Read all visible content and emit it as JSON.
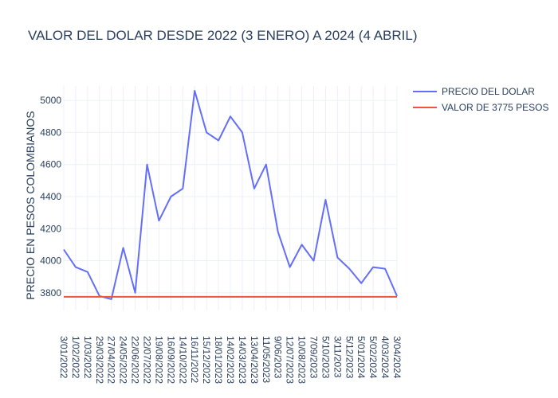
{
  "chart_data": {
    "type": "line",
    "title": "VALOR DEL DOLAR DESDE 2022 (3 ENERO) A 2024 (4 ABRIL)",
    "ylabel": "PRECIO EN PESOS COLOMBIANOS",
    "xlabel": "",
    "ylim": [
      3690,
      5090
    ],
    "yticks": [
      3800,
      4000,
      4200,
      4400,
      4600,
      4800,
      5000
    ],
    "x_tick_labels": [
      "3/01/2022",
      "1/02/2022",
      "1/03/2022",
      "29/03/2022",
      "27/04/2022",
      "24/05/2022",
      "22/06/2022",
      "22/07/2022",
      "19/08/2022",
      "16/09/2022",
      "14/10/2022",
      "16/11/2022",
      "15/12/2022",
      "18/01/2023",
      "14/02/2023",
      "14/03/2023",
      "13/04/2023",
      "11/05/2023",
      "9/06/2023",
      "12/07/2023",
      "10/08/2023",
      "7/09/2023",
      "5/10/2023",
      "3/11/2023",
      "5/12/2023",
      "5/01/2024",
      "5/02/2024",
      "4/03/2024",
      "3/04/2024"
    ],
    "grid": true,
    "legend_position": "top-right",
    "series": [
      {
        "name": "PRECIO DEL DOLAR",
        "color": "#636efa",
        "x_index": [
          0,
          1,
          2,
          3,
          4,
          5,
          6,
          7,
          8,
          9,
          10,
          11,
          12,
          13,
          14,
          15,
          16,
          17,
          18,
          19,
          20,
          21,
          22,
          23,
          24,
          25,
          26,
          27,
          28
        ],
        "values": [
          4070,
          3960,
          3930,
          3780,
          3760,
          4080,
          3800,
          4600,
          4250,
          4400,
          4450,
          5060,
          4800,
          4750,
          4900,
          4800,
          4450,
          4600,
          4180,
          3960,
          4100,
          4000,
          4380,
          4020,
          3950,
          3860,
          3960,
          3950,
          3780
        ]
      },
      {
        "name": "VALOR DE 3775 PESOS",
        "color": "#ef553b",
        "x_index": [
          0,
          28
        ],
        "values": [
          3775,
          3775
        ]
      }
    ]
  }
}
